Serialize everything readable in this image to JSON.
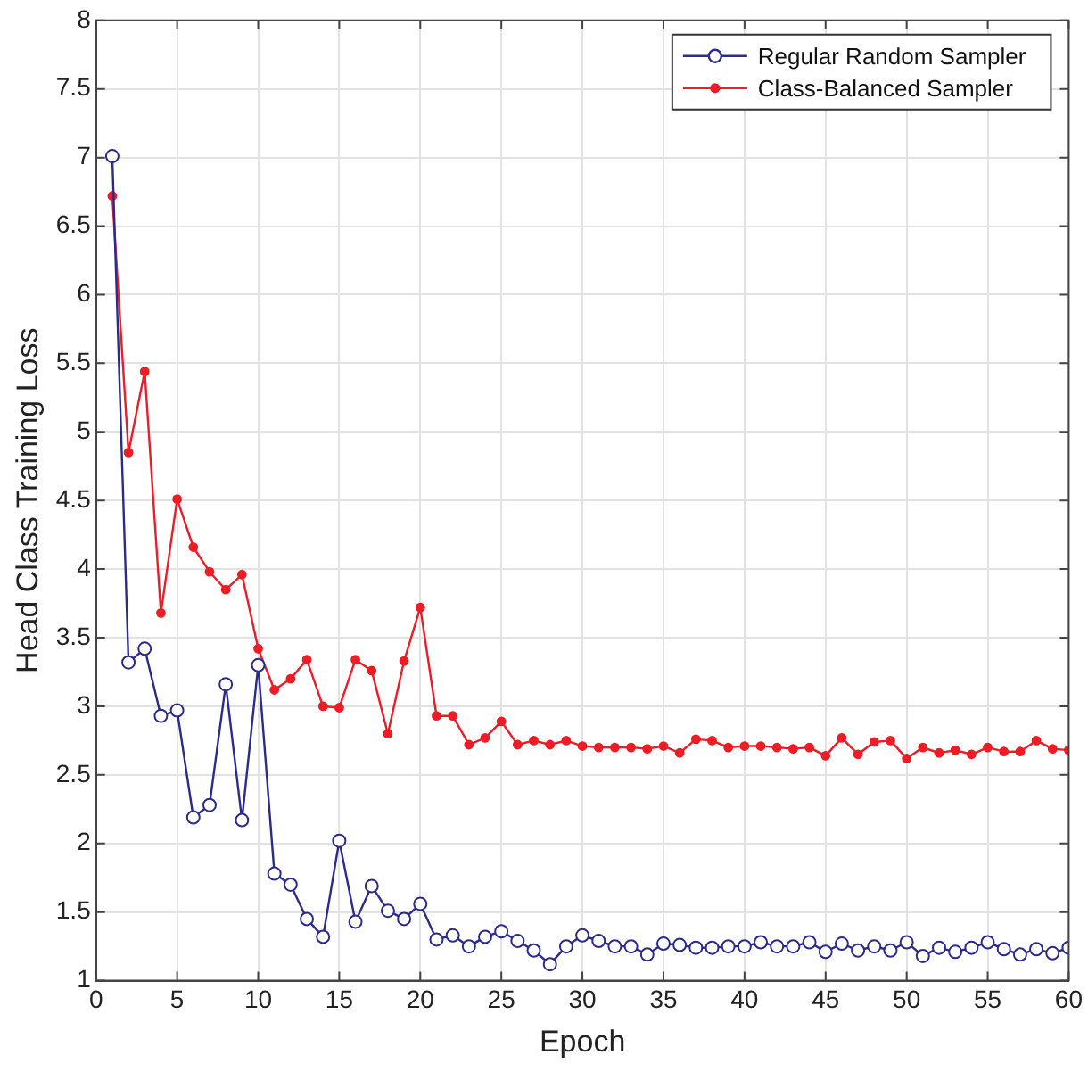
{
  "chart_data": {
    "type": "line",
    "xlabel": "Epoch",
    "ylabel": "Head Class Training Loss",
    "x": [
      1,
      2,
      3,
      4,
      5,
      6,
      7,
      8,
      9,
      10,
      11,
      12,
      13,
      14,
      15,
      16,
      17,
      18,
      19,
      20,
      21,
      22,
      23,
      24,
      25,
      26,
      27,
      28,
      29,
      30,
      31,
      32,
      33,
      34,
      35,
      36,
      37,
      38,
      39,
      40,
      41,
      42,
      43,
      44,
      45,
      46,
      47,
      48,
      49,
      50,
      51,
      52,
      53,
      54,
      55,
      56,
      57,
      58,
      59,
      60
    ],
    "series": [
      {
        "name": "Regular Random Sampler",
        "color": "#2b2b8f",
        "values": [
          7.01,
          3.32,
          3.42,
          2.93,
          2.97,
          2.19,
          2.28,
          3.16,
          2.17,
          3.3,
          1.78,
          1.7,
          1.45,
          1.32,
          2.02,
          1.43,
          1.69,
          1.51,
          1.45,
          1.56,
          1.3,
          1.33,
          1.25,
          1.32,
          1.36,
          1.29,
          1.22,
          1.12,
          1.25,
          1.33,
          1.29,
          1.25,
          1.25,
          1.19,
          1.27,
          1.26,
          1.24,
          1.24,
          1.25,
          1.25,
          1.28,
          1.25,
          1.25,
          1.28,
          1.21,
          1.27,
          1.22,
          1.25,
          1.22,
          1.28,
          1.18,
          1.24,
          1.21,
          1.24,
          1.28,
          1.23,
          1.19,
          1.23,
          1.2,
          1.24
        ]
      },
      {
        "name": "Class-Balanced Sampler",
        "color": "#ee1c25",
        "values": [
          6.72,
          4.85,
          5.44,
          3.68,
          4.51,
          4.16,
          3.98,
          3.85,
          3.96,
          3.42,
          3.12,
          3.2,
          3.34,
          3.0,
          2.99,
          3.34,
          3.26,
          2.8,
          3.33,
          3.72,
          2.93,
          2.93,
          2.72,
          2.77,
          2.89,
          2.72,
          2.75,
          2.72,
          2.75,
          2.71,
          2.7,
          2.7,
          2.7,
          2.69,
          2.71,
          2.66,
          2.76,
          2.75,
          2.7,
          2.71,
          2.71,
          2.7,
          2.69,
          2.7,
          2.64,
          2.77,
          2.65,
          2.74,
          2.75,
          2.62,
          2.7,
          2.66,
          2.68,
          2.65,
          2.7,
          2.67,
          2.67,
          2.75,
          2.69,
          2.68
        ]
      }
    ],
    "xlim": [
      0,
      60
    ],
    "xticks": [
      0,
      5,
      10,
      15,
      20,
      25,
      30,
      35,
      40,
      45,
      50,
      55,
      60
    ],
    "ylim": [
      1,
      8
    ],
    "yticks": [
      1,
      1.5,
      2,
      2.5,
      3,
      3.5,
      4,
      4.5,
      5,
      5.5,
      6,
      6.5,
      7,
      7.5,
      8
    ],
    "grid": true,
    "legend": "top right",
    "marker": "circle",
    "line_style": "solid"
  }
}
